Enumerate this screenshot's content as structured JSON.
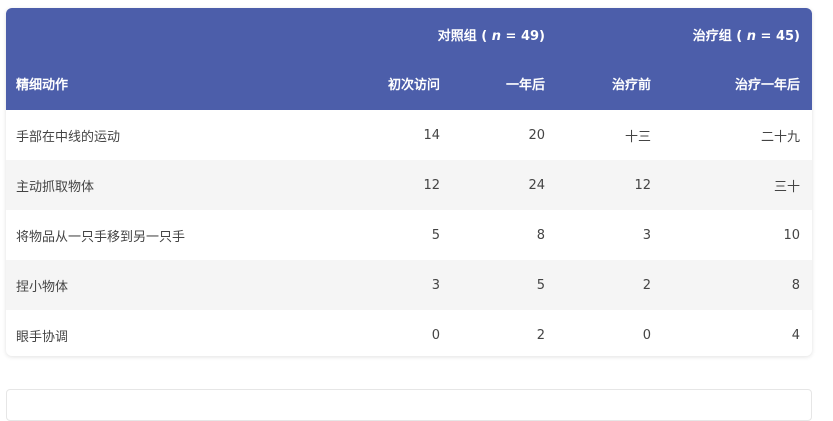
{
  "table": {
    "group_headers": [
      {
        "label_prefix": "对照组 ( ",
        "n_label": "n",
        "label_suffix": " = 49)"
      },
      {
        "label_prefix": "治疗组 ( ",
        "n_label": "n",
        "label_suffix": " = 45)"
      }
    ],
    "columns": [
      "精细动作",
      "初次访问",
      "一年后",
      "治疗前",
      "治疗一年后"
    ],
    "rows": [
      [
        "手部在中线的运动",
        "14",
        "20",
        "十三",
        "二十九"
      ],
      [
        "主动抓取物体",
        "12",
        "24",
        "12",
        "三十"
      ],
      [
        "将物品从一只手移到另一只手",
        "5",
        "8",
        "3",
        "10"
      ],
      [
        "捏小物体",
        "3",
        "5",
        "2",
        "8"
      ],
      [
        "眼手协调",
        "0",
        "2",
        "0",
        "4"
      ]
    ]
  },
  "colors": {
    "header_bg": "#4c5eaa",
    "header_text": "#ffffff",
    "stripe": "#f5f5f5"
  }
}
